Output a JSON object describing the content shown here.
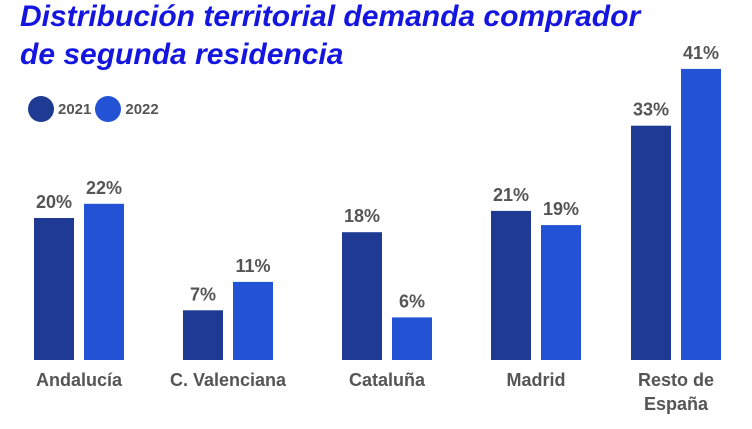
{
  "chart_data": {
    "type": "bar",
    "title": "Distribución territorial demanda comprador de segunda residencia",
    "title_lines": [
      "Distribución territorial demanda comprador",
      "de segunda residencia"
    ],
    "categories": [
      [
        "Andalucía"
      ],
      [
        "C. Valenciana"
      ],
      [
        "Cataluña"
      ],
      [
        "Madrid"
      ],
      [
        "Resto de",
        "España"
      ]
    ],
    "series": [
      {
        "name": "2021",
        "color": "#1f3a93",
        "values": [
          20,
          7,
          18,
          21,
          33
        ]
      },
      {
        "name": "2022",
        "color": "#2352d4",
        "values": [
          22,
          11,
          6,
          19,
          41
        ]
      }
    ],
    "value_format": "%",
    "legend": "top-left",
    "grid": false
  }
}
